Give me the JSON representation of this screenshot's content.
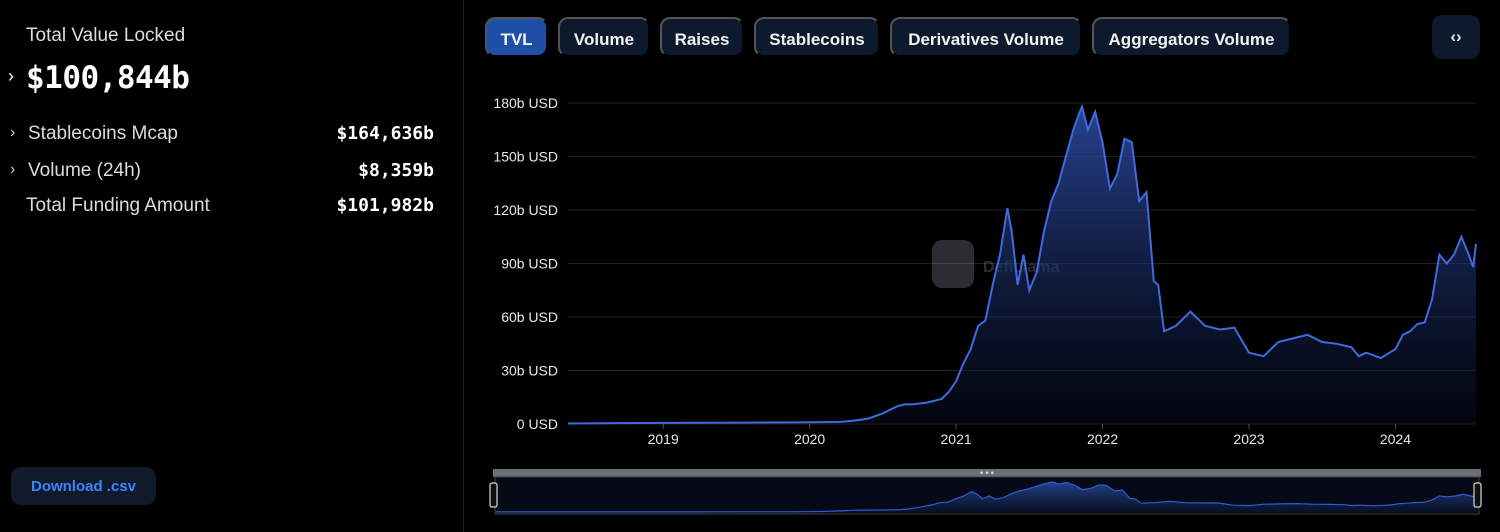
{
  "summary": {
    "tvl_label": "Total Value Locked",
    "tvl_value": "$100,844b",
    "metrics": [
      {
        "label": "Stablecoins Mcap",
        "value": "$164,636b",
        "expandable": true
      },
      {
        "label": "Volume (24h)",
        "value": "$8,359b",
        "expandable": true
      },
      {
        "label": "Total Funding Amount",
        "value": "$101,982b",
        "expandable": false
      }
    ],
    "download_label": "Download .csv"
  },
  "tabs": [
    {
      "label": "TVL",
      "active": true
    },
    {
      "label": "Volume",
      "active": false
    },
    {
      "label": "Raises",
      "active": false
    },
    {
      "label": "Stablecoins",
      "active": false
    },
    {
      "label": "Derivatives Volume",
      "active": false
    },
    {
      "label": "Aggregators Volume",
      "active": false
    }
  ],
  "embed_icon": "code-brackets-icon",
  "watermark": "DefiLlama",
  "colors": {
    "line": "#3f6ae0",
    "active_tab": "#1e4ea8",
    "tab_bg": "#0d1a2e",
    "download_text": "#3a86ff"
  },
  "chart_data": {
    "type": "area",
    "title": "",
    "xlabel": "",
    "ylabel": "",
    "y_tick_labels": [
      "0 USD",
      "30b USD",
      "60b USD",
      "90b USD",
      "120b USD",
      "150b USD",
      "180b USD"
    ],
    "y_ticks": [
      0,
      30,
      60,
      90,
      120,
      150,
      180
    ],
    "ylim": [
      0,
      180
    ],
    "x_tick_labels": [
      "2019",
      "2020",
      "2021",
      "2022",
      "2023",
      "2024"
    ],
    "x_ticks": [
      2019,
      2020,
      2021,
      2022,
      2023,
      2024
    ],
    "xlim": [
      2018.35,
      2024.55
    ],
    "grid": true,
    "legend": "none",
    "series": [
      {
        "unit": "billion USD",
        "x": [
          2018.35,
          2018.7,
          2019.0,
          2019.3,
          2019.6,
          2019.9,
          2020.0,
          2020.2,
          2020.3,
          2020.4,
          2020.5,
          2020.55,
          2020.6,
          2020.65,
          2020.7,
          2020.8,
          2020.9,
          2020.95,
          2021.0,
          2021.05,
          2021.1,
          2021.15,
          2021.2,
          2021.25,
          2021.3,
          2021.35,
          2021.38,
          2021.42,
          2021.46,
          2021.5,
          2021.55,
          2021.6,
          2021.65,
          2021.7,
          2021.75,
          2021.8,
          2021.83,
          2021.86,
          2021.9,
          2021.95,
          2022.0,
          2022.05,
          2022.1,
          2022.15,
          2022.2,
          2022.25,
          2022.3,
          2022.35,
          2022.38,
          2022.42,
          2022.5,
          2022.6,
          2022.7,
          2022.8,
          2022.9,
          2023.0,
          2023.1,
          2023.2,
          2023.3,
          2023.4,
          2023.5,
          2023.6,
          2023.7,
          2023.75,
          2023.8,
          2023.9,
          2024.0,
          2024.05,
          2024.1,
          2024.15,
          2024.2,
          2024.25,
          2024.3,
          2024.35,
          2024.4,
          2024.45,
          2024.5,
          2024.53,
          2024.55
        ],
        "y": [
          0.3,
          0.5,
          0.6,
          0.7,
          0.8,
          0.9,
          1.0,
          1.1,
          1.8,
          3.0,
          6.0,
          8.0,
          10.0,
          11.0,
          11.0,
          12.0,
          14.0,
          18.0,
          24.0,
          34.0,
          42.0,
          55.0,
          58.0,
          78.0,
          95.0,
          121.0,
          108.0,
          78.0,
          95.0,
          75.0,
          85.0,
          108.0,
          125.0,
          135.0,
          150.0,
          165.0,
          172.0,
          178.0,
          165.0,
          175.0,
          158.0,
          132.0,
          140.0,
          160.0,
          158.0,
          125.0,
          130.0,
          80.0,
          78.0,
          52.0,
          55.0,
          63.0,
          55.0,
          53.0,
          54.0,
          40.0,
          38.0,
          46.0,
          48.0,
          50.0,
          46.0,
          45.0,
          43.0,
          38.0,
          40.0,
          37.0,
          42.0,
          50.0,
          52.0,
          56.0,
          57.0,
          70.0,
          95.0,
          90.0,
          95.0,
          105.0,
          95.0,
          88.0,
          101.0
        ]
      }
    ],
    "range_selector": {
      "start": 0.0,
      "end": 1.0
    }
  }
}
